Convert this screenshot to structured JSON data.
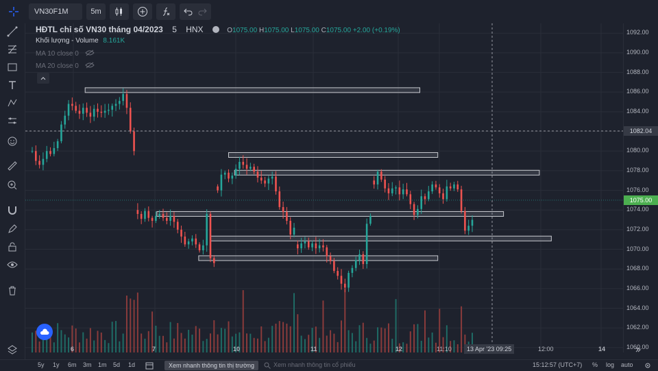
{
  "toolbar": {
    "symbol": "VN30F1M",
    "interval": "5m"
  },
  "legend": {
    "title": "HĐTL chỉ số VN30 tháng 04/2023",
    "interval": "5",
    "exchange": "HNX",
    "o_label": "O",
    "o_value": "1075.00",
    "h_label": "H",
    "h_value": "1075.00",
    "l_label": "L",
    "l_value": "1075.00",
    "c_label": "C",
    "c_value": "1075.00",
    "change": "+2.00 (+0.19%)",
    "volume_label": "Khối lượng - Volume",
    "volume_value": "8.161K",
    "ma10": "MA 10 close 0",
    "ma20": "MA 20 close 0"
  },
  "price_axis": {
    "ticks": [
      "1092.00",
      "1090.00",
      "1088.00",
      "1086.00",
      "1084.00",
      "1082.00",
      "1080.00",
      "1078.00",
      "1076.00",
      "1074.00",
      "1072.00",
      "1070.00",
      "1068.00",
      "1066.00",
      "1064.00",
      "1062.00",
      "1060.00"
    ],
    "crosshair_price": "1082.04",
    "last_price": "1075.00"
  },
  "time_axis": {
    "ticks": [
      "6",
      "7",
      "10",
      "11",
      "12",
      "11:10",
      "12:00",
      "14"
    ],
    "crosshair_label": "13 Apr '23",
    "crosshair_time": "09:25"
  },
  "bottom": {
    "ranges": [
      "5y",
      "1y",
      "6m",
      "3m",
      "1m",
      "5d",
      "1d"
    ],
    "news_market": "Xem nhanh thông tin thị trường",
    "news_stock": "Xem nhanh thông tin cổ phiếu",
    "clock": "15:12:57 (UTC+7)",
    "percent": "%",
    "log": "log",
    "auto": "auto"
  },
  "colors": {
    "up": "#26a69a",
    "down": "#ef5350",
    "background": "#1e222d",
    "last_price": "#4caf50"
  },
  "chart_data": {
    "type": "candlestick",
    "ylim": [
      1059.5,
      1093
    ],
    "hlines": [
      {
        "price": 1086.2,
        "from": 0.1,
        "to": 0.66
      },
      {
        "price": 1079.6,
        "from": 0.34,
        "to": 0.69
      },
      {
        "price": 1077.8,
        "from": 0.35,
        "to": 0.86
      },
      {
        "price": 1073.6,
        "from": 0.22,
        "to": 0.8
      },
      {
        "price": 1071.1,
        "from": 0.31,
        "to": 0.88
      },
      {
        "price": 1069.1,
        "from": 0.29,
        "to": 0.69
      }
    ],
    "segments": [
      {
        "label": "6",
        "points": [
          1080,
          1079,
          1078.6,
          1079.2,
          1080,
          1079.7,
          1080.3,
          1081,
          1082.7,
          1083.6,
          1084.8,
          1084.6,
          1084.1,
          1083.8,
          1084.4,
          1083.9,
          1083.5,
          1084.3,
          1084,
          1083.9,
          1084.1,
          1084.2,
          1084.6,
          1084.8,
          1085.1,
          1085.8,
          1084.4,
          1082,
          1080
        ]
      },
      {
        "label": "7",
        "points": [
          1073.6,
          1073.1,
          1073.9,
          1073.2,
          1072.9,
          1073.4,
          1073.6,
          1073.2,
          1072.9,
          1073.4,
          1072.8,
          1072,
          1071.3,
          1070.5,
          1070.8,
          1071.1,
          1070.5,
          1069.9,
          1070.4,
          1073.6,
          1069.1,
          1068.6
        ]
      },
      {
        "label": "10",
        "points": [
          1076,
          1077.6,
          1077.8,
          1077.2,
          1077.5,
          1078.2,
          1078.9,
          1078.6,
          1078.2,
          1078.4,
          1077.9,
          1077.3,
          1077,
          1076.7,
          1077.2,
          1077.4,
          1075.9,
          1074.3,
          1073.8,
          1072.9,
          1071.5,
          1072.2
        ]
      },
      {
        "label": "11",
        "points": [
          1070.1,
          1070.6,
          1070.8,
          1070.2,
          1070.6,
          1070.1,
          1070.4,
          1070.2,
          1069.3,
          1068.8,
          1067.8,
          1067.3,
          1066.5,
          1066.1,
          1067.6,
          1068.1,
          1068.9,
          1069.5,
          1068.5,
          1072.6,
          1073.4
        ]
      },
      {
        "label": "12",
        "points": [
          1076.6,
          1077.9,
          1077.1,
          1076.2,
          1075.7,
          1076.2,
          1076.3,
          1075.6,
          1076.1,
          1075.6,
          1074.6,
          1073.5,
          1074.1,
          1075.4,
          1075.1,
          1075.9,
          1076.6,
          1076.3,
          1075.7,
          1075.1,
          1076.4,
          1076.2,
          1076.6,
          1076.1,
          1073.9,
          1071.9,
          1072.4,
          1073
        ]
      }
    ]
  }
}
